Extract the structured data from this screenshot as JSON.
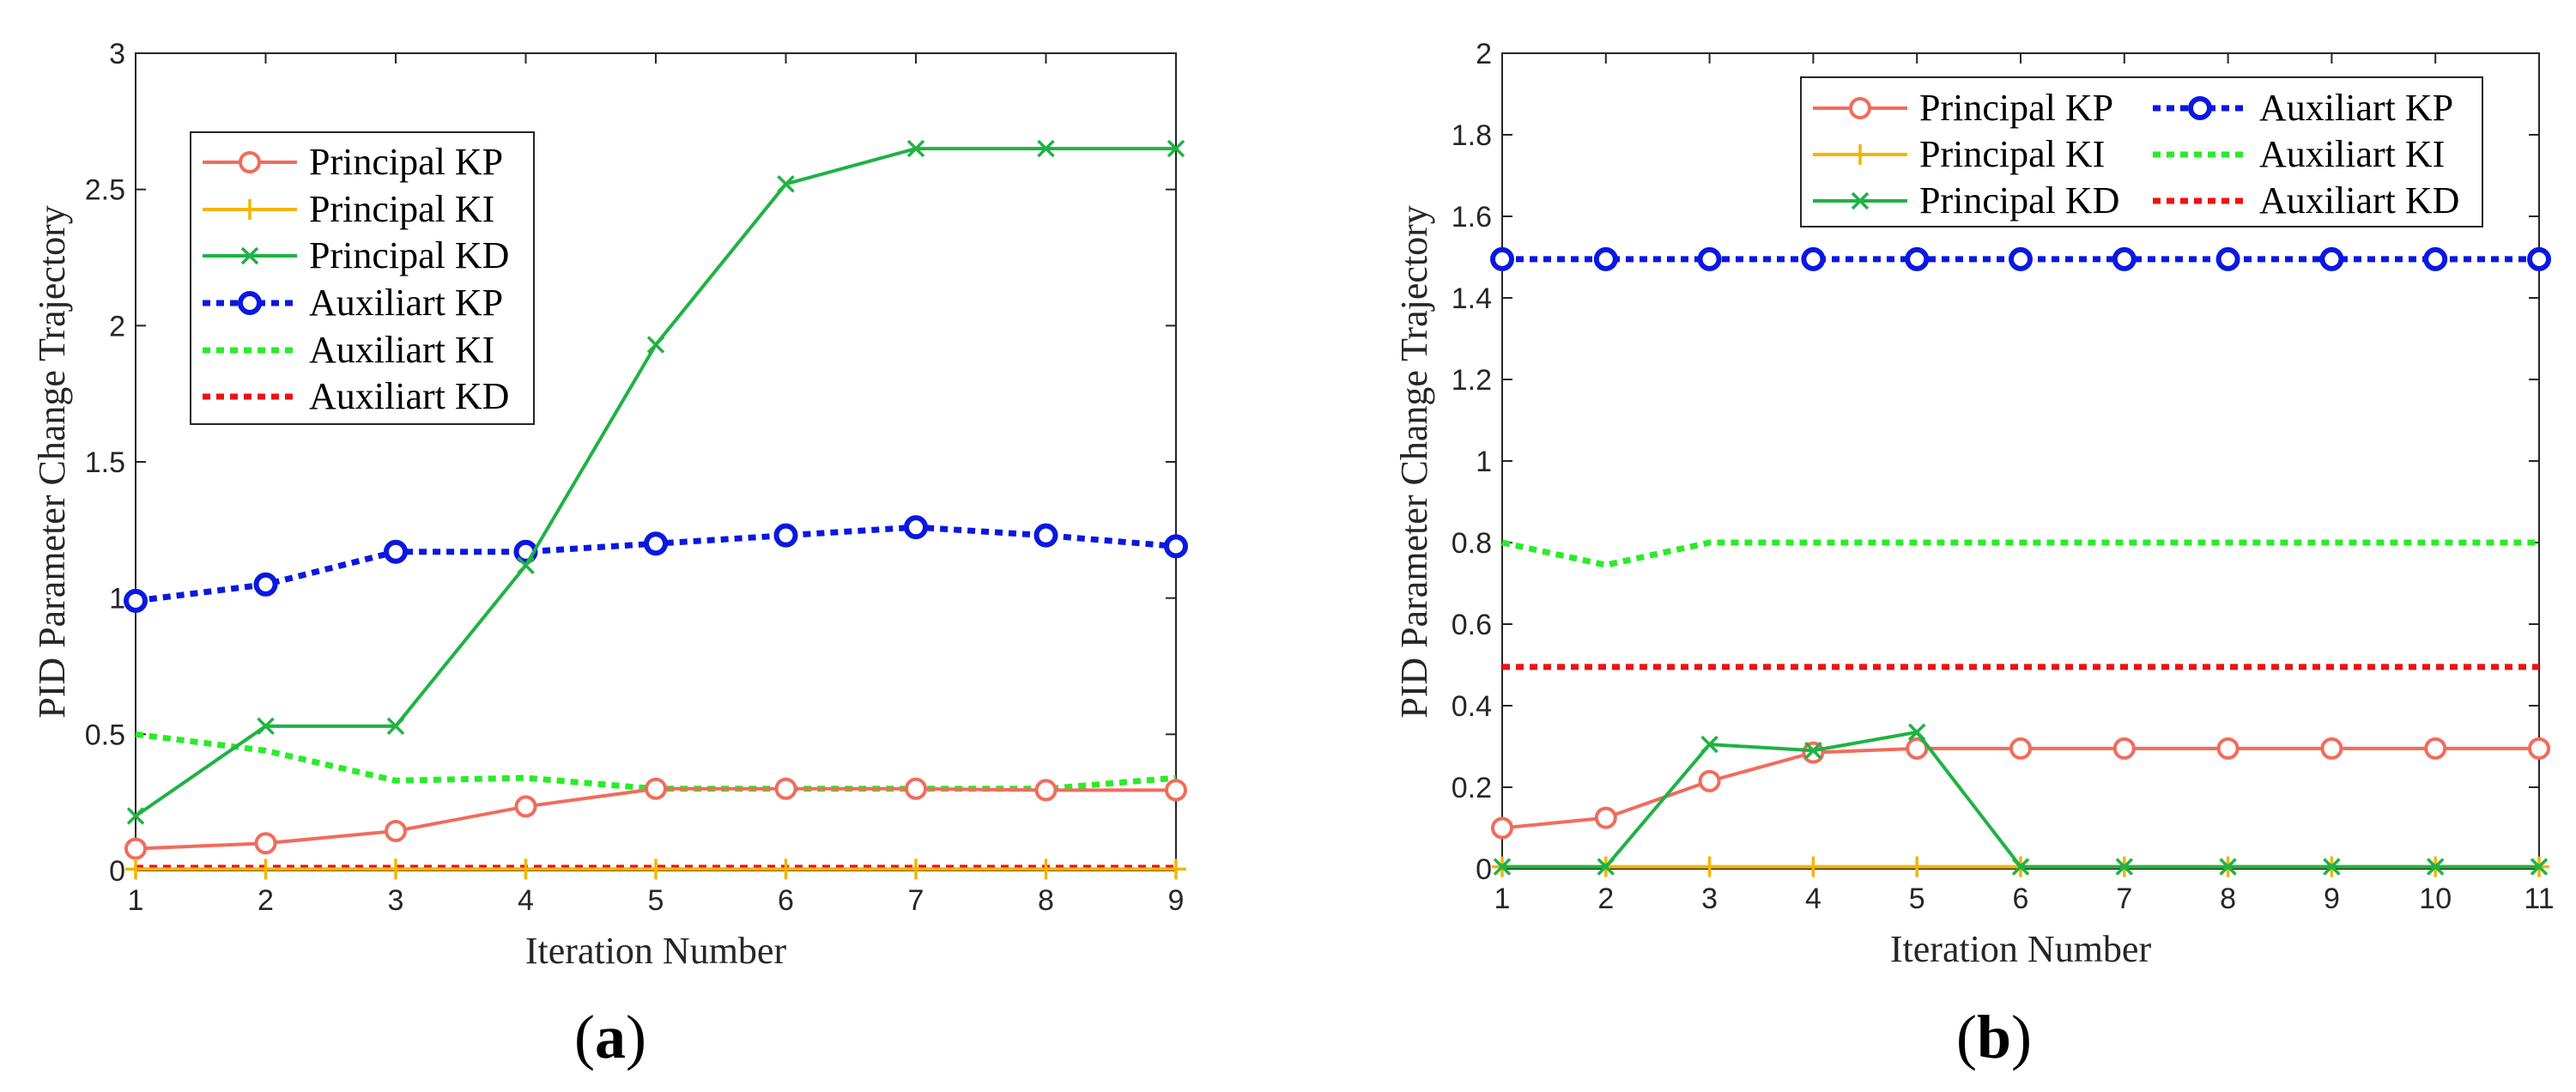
{
  "colors": {
    "principal_kp": "#f26b5b",
    "principal_ki": "#f4b400",
    "principal_kd": "#1fb244",
    "auxiliart_kp": "#0a18e0",
    "auxiliart_ki": "#2aeb2a",
    "auxiliart_kd": "#ee1111"
  },
  "chart_data": [
    {
      "type": "line",
      "panel_label_open": "(",
      "panel_label_letter": "a",
      "panel_label_close": ")",
      "xlabel": "Iteration Number",
      "ylabel": "PID Parameter Change Trajectory",
      "x": [
        1,
        2,
        3,
        4,
        5,
        6,
        7,
        8,
        9
      ],
      "xlim": [
        1,
        9
      ],
      "ylim": [
        0,
        3
      ],
      "xticks": [
        "1",
        "2",
        "3",
        "4",
        "5",
        "6",
        "7",
        "8",
        "9"
      ],
      "yticks": [
        "0",
        "0.5",
        "1",
        "1.5",
        "2",
        "2.5",
        "3"
      ],
      "legend_position": "upper-left",
      "series": [
        {
          "name": "Principal KP",
          "values": [
            0.08,
            0.1,
            0.145,
            0.235,
            0.3,
            0.3,
            0.3,
            0.295,
            0.295
          ]
        },
        {
          "name": "Principal KI",
          "values": [
            0.005,
            0.005,
            0.005,
            0.005,
            0.005,
            0.005,
            0.005,
            0.005,
            0.005
          ]
        },
        {
          "name": "Principal KD",
          "values": [
            0.2,
            0.53,
            0.53,
            1.12,
            1.93,
            2.52,
            2.65,
            2.65,
            2.65
          ]
        },
        {
          "name": "Auxiliart KP",
          "values": [
            0.99,
            1.05,
            1.17,
            1.17,
            1.2,
            1.23,
            1.26,
            1.23,
            1.19
          ]
        },
        {
          "name": "Auxiliart KI",
          "values": [
            0.5,
            0.44,
            0.33,
            0.34,
            0.3,
            0.3,
            0.3,
            0.3,
            0.34
          ]
        },
        {
          "name": "Auxiliart KD",
          "values": [
            0.01,
            0.01,
            0.01,
            0.01,
            0.01,
            0.01,
            0.01,
            0.01,
            0.01
          ]
        }
      ]
    },
    {
      "type": "line",
      "panel_label_open": "(",
      "panel_label_letter": "b",
      "panel_label_close": ")",
      "xlabel": "Iteration Number",
      "ylabel": "PID Parameter Change Trajectory",
      "x": [
        1,
        2,
        3,
        4,
        5,
        6,
        7,
        8,
        9,
        10,
        11
      ],
      "xlim": [
        1,
        11
      ],
      "ylim": [
        0,
        2
      ],
      "xticks": [
        "1",
        "2",
        "3",
        "4",
        "5",
        "6",
        "7",
        "8",
        "9",
        "10",
        "11"
      ],
      "yticks": [
        "0",
        "0.2",
        "0.4",
        "0.6",
        "0.8",
        "1",
        "1.2",
        "1.4",
        "1.6",
        "1.8",
        "2"
      ],
      "legend_position": "top-right (two columns)",
      "series": [
        {
          "name": "Principal KP",
          "values": [
            0.1,
            0.125,
            0.215,
            0.285,
            0.295,
            0.295,
            0.295,
            0.295,
            0.295,
            0.295,
            0.295
          ]
        },
        {
          "name": "Principal KI",
          "values": [
            0.005,
            0.005,
            0.005,
            0.005,
            0.005,
            0.005,
            0.005,
            0.005,
            0.005,
            0.005,
            0.005
          ]
        },
        {
          "name": "Principal KD",
          "values": [
            0.005,
            0.005,
            0.305,
            0.29,
            0.335,
            0.005,
            0.005,
            0.005,
            0.005,
            0.005,
            0.005
          ]
        },
        {
          "name": "Auxiliart KP",
          "values": [
            1.495,
            1.495,
            1.495,
            1.495,
            1.495,
            1.495,
            1.495,
            1.495,
            1.495,
            1.495,
            1.495
          ]
        },
        {
          "name": "Auxiliart KI",
          "values": [
            0.8,
            0.745,
            0.8,
            0.8,
            0.8,
            0.8,
            0.8,
            0.8,
            0.8,
            0.8,
            0.8
          ]
        },
        {
          "name": "Auxiliart KD",
          "values": [
            0.495,
            0.495,
            0.495,
            0.495,
            0.495,
            0.495,
            0.495,
            0.495,
            0.495,
            0.495,
            0.495
          ]
        }
      ]
    }
  ]
}
